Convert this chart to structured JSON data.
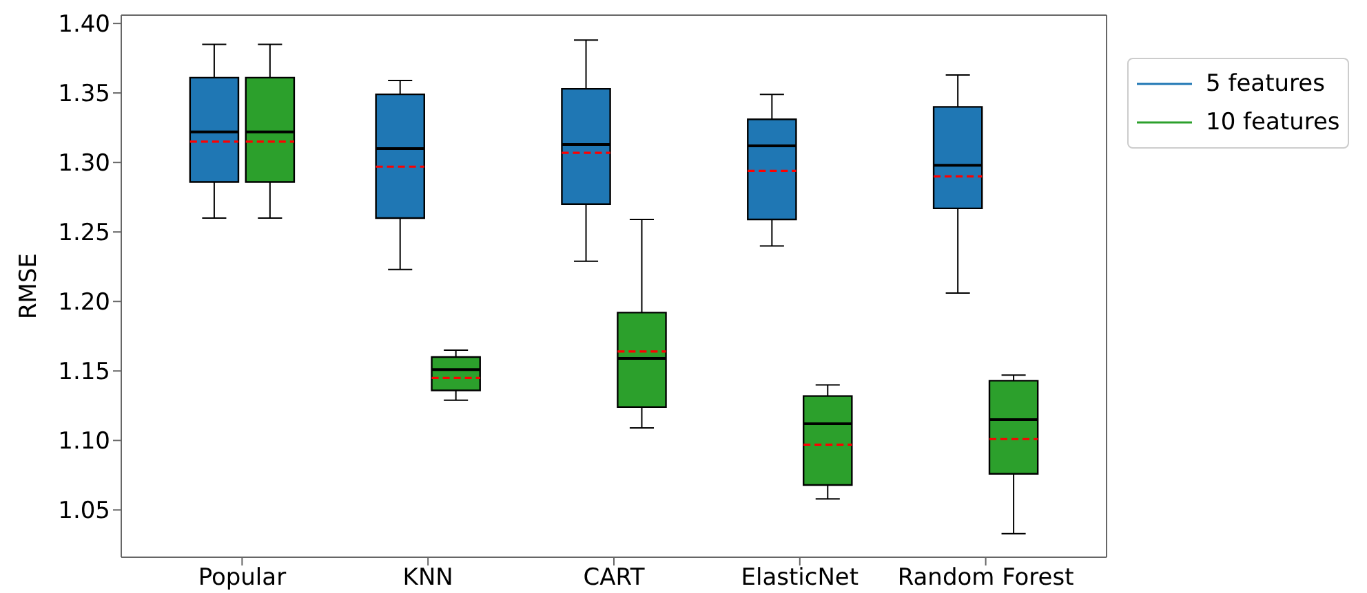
{
  "chart_data": {
    "type": "box",
    "ylabel": "RMSE",
    "categories": [
      "Popular",
      "KNN",
      "CART",
      "ElasticNet",
      "Random Forest"
    ],
    "ylim": [
      1.016,
      1.406
    ],
    "yticks": [
      {
        "value": 1.05,
        "label": "1.05"
      },
      {
        "value": 1.1,
        "label": "1.10"
      },
      {
        "value": 1.15,
        "label": "1.15"
      },
      {
        "value": 1.2,
        "label": "1.20"
      },
      {
        "value": 1.25,
        "label": "1.25"
      },
      {
        "value": 1.3,
        "label": "1.30"
      },
      {
        "value": 1.35,
        "label": "1.35"
      },
      {
        "value": 1.4,
        "label": "1.40"
      }
    ],
    "grid": false,
    "legend": "top right",
    "series": [
      {
        "name": "5 features",
        "color": "#1f77b4",
        "boxes": [
          {
            "low": 1.26,
            "q1": 1.286,
            "median": 1.322,
            "q3": 1.361,
            "high": 1.385,
            "mean": 1.315
          },
          {
            "low": 1.223,
            "q1": 1.26,
            "median": 1.31,
            "q3": 1.349,
            "high": 1.359,
            "mean": 1.297
          },
          {
            "low": 1.229,
            "q1": 1.27,
            "median": 1.313,
            "q3": 1.353,
            "high": 1.388,
            "mean": 1.307
          },
          {
            "low": 1.24,
            "q1": 1.259,
            "median": 1.312,
            "q3": 1.331,
            "high": 1.349,
            "mean": 1.294
          },
          {
            "low": 1.206,
            "q1": 1.267,
            "median": 1.298,
            "q3": 1.34,
            "high": 1.363,
            "mean": 1.29
          }
        ]
      },
      {
        "name": "10 features",
        "color": "#2ca02c",
        "boxes": [
          {
            "low": 1.26,
            "q1": 1.286,
            "median": 1.322,
            "q3": 1.361,
            "high": 1.385,
            "mean": 1.315
          },
          {
            "low": 1.129,
            "q1": 1.136,
            "median": 1.151,
            "q3": 1.16,
            "high": 1.165,
            "mean": 1.145
          },
          {
            "low": 1.109,
            "q1": 1.124,
            "median": 1.159,
            "q3": 1.192,
            "high": 1.259,
            "mean": 1.164
          },
          {
            "low": 1.058,
            "q1": 1.068,
            "median": 1.112,
            "q3": 1.132,
            "high": 1.14,
            "mean": 1.097
          },
          {
            "low": 1.033,
            "q1": 1.076,
            "median": 1.115,
            "q3": 1.143,
            "high": 1.147,
            "mean": 1.101
          }
        ]
      }
    ]
  }
}
